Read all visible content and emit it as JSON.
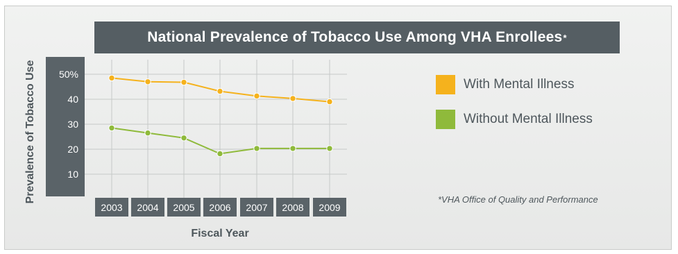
{
  "chart_data": {
    "type": "line",
    "title": "National Prevalence of Tobacco Use Among VHA Enrollees",
    "title_note_marker": "*",
    "xlabel": "Fiscal Year",
    "ylabel": "Prevalence of Tobacco Use",
    "categories": [
      "2003",
      "2004",
      "2005",
      "2006",
      "2007",
      "2008",
      "2009"
    ],
    "y_ticks": [
      "50%",
      "40",
      "30",
      "20",
      "10"
    ],
    "ylim": [
      0,
      55
    ],
    "grid": true,
    "legend_position": "right",
    "series": [
      {
        "name": "With Mental Illness",
        "color": "#f5b21d",
        "values": [
          48.5,
          47,
          46.8,
          43.2,
          41.3,
          40.3,
          39
        ]
      },
      {
        "name": "Without Mental Illness",
        "color": "#8fba3b",
        "values": [
          28.5,
          26.5,
          24.5,
          18.2,
          20.3,
          20.3,
          20.3
        ]
      }
    ]
  },
  "source_note": "*VHA Office of Quality and Performance"
}
